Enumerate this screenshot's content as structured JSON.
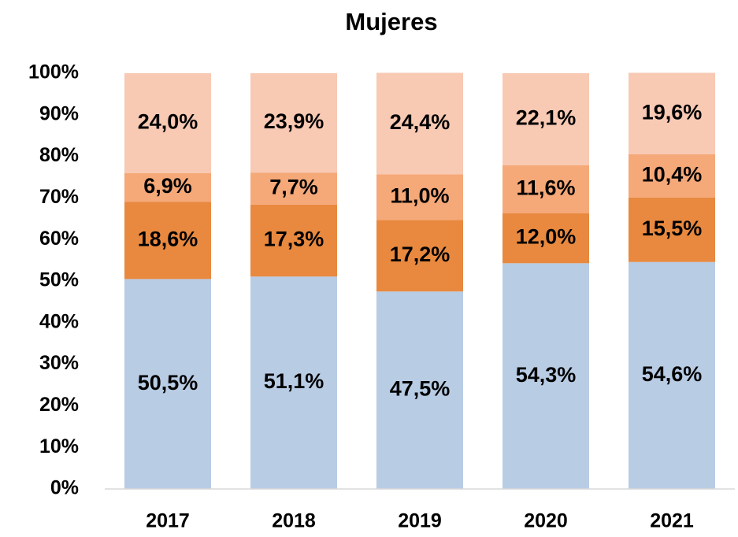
{
  "chart_data": {
    "type": "stacked_bar",
    "title": "Mujeres",
    "categories": [
      "2017",
      "2018",
      "2019",
      "2020",
      "2021"
    ],
    "series": [
      {
        "color": "#b8cce4",
        "values": [
          50.5,
          51.1,
          47.5,
          54.3,
          54.6
        ],
        "value_labels": [
          "50,5%",
          "51,1%",
          "47,5%",
          "54,3%",
          "54,6%"
        ]
      },
      {
        "color": "#e8893f",
        "values": [
          18.6,
          17.3,
          17.2,
          12.0,
          15.5
        ],
        "value_labels": [
          "18,6%",
          "17,3%",
          "17,2%",
          "12,0%",
          "15,5%"
        ]
      },
      {
        "color": "#f5a878",
        "values": [
          6.9,
          7.7,
          11.0,
          11.6,
          10.4
        ],
        "value_labels": [
          "6,9%",
          "7,7%",
          "11,0%",
          "11,6%",
          "10,4%"
        ]
      },
      {
        "color": "#f8c9b3",
        "values": [
          24.0,
          23.9,
          24.4,
          22.1,
          19.6
        ],
        "value_labels": [
          "24,0%",
          "23,9%",
          "24,4%",
          "22,1%",
          "19,6%"
        ]
      }
    ],
    "ylim": [
      0,
      100
    ],
    "yticks": [
      {
        "value": 0,
        "label": "0%"
      },
      {
        "value": 10,
        "label": "10%"
      },
      {
        "value": 20,
        "label": "20%"
      },
      {
        "value": 30,
        "label": "30%"
      },
      {
        "value": 40,
        "label": "40%"
      },
      {
        "value": 50,
        "label": "50%"
      },
      {
        "value": 60,
        "label": "60%"
      },
      {
        "value": 70,
        "label": "70%"
      },
      {
        "value": 80,
        "label": "80%"
      },
      {
        "value": 90,
        "label": "90%"
      },
      {
        "value": 100,
        "label": "100%"
      }
    ],
    "grid": false
  }
}
